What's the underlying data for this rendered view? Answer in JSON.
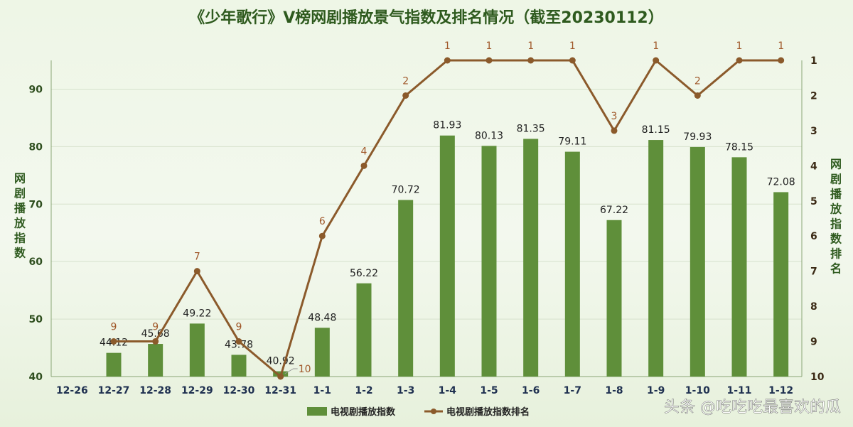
{
  "watermark": "头条 @吃吃吃最喜欢的瓜",
  "colors": {
    "bar": "#5f8f3a",
    "line": "#8b5a2b",
    "rank_label": "#a0582a",
    "grid": "#d6e2cc",
    "axis": "#8aa676"
  },
  "chart_data": {
    "type": "bar",
    "title": "《少年歌行》V榜网剧播放景气指数及排名情况（截至20230112）",
    "ylabel": "网剧播放指数",
    "y2label": "网剧播放指数排名",
    "ylim": [
      40,
      95
    ],
    "yticks": [
      40,
      50,
      60,
      70,
      80,
      90
    ],
    "y2lim": [
      1,
      10
    ],
    "y2ticks": [
      1,
      2,
      3,
      4,
      5,
      6,
      7,
      8,
      9,
      10
    ],
    "y2_reversed": true,
    "grid": true,
    "legend_position": "bottom",
    "categories": [
      "12-26",
      "12-27",
      "12-28",
      "12-29",
      "12-30",
      "12-31",
      "1-1",
      "1-2",
      "1-3",
      "1-4",
      "1-5",
      "1-6",
      "1-7",
      "1-8",
      "1-9",
      "1-10",
      "1-11",
      "1-12"
    ],
    "series": [
      {
        "name": "电视剧播放指数",
        "type": "bar",
        "axis": "left",
        "values": [
          null,
          44.12,
          45.68,
          49.22,
          43.78,
          40.92,
          48.48,
          56.22,
          70.72,
          81.93,
          80.13,
          81.35,
          79.11,
          67.22,
          81.15,
          79.93,
          78.15,
          72.08
        ],
        "labels": [
          "",
          "44.12",
          "45.68",
          "49.22",
          "43.78",
          "40.92",
          "48.48",
          "56.22",
          "70.72",
          "81.93",
          "80.13",
          "81.35",
          "79.11",
          "67.22",
          "81.15",
          "79.93",
          "78.15",
          "72.08"
        ]
      },
      {
        "name": "电视剧播放指数排名",
        "type": "line",
        "axis": "right",
        "values": [
          null,
          9,
          9,
          7,
          9,
          10,
          6,
          4,
          2,
          1,
          1,
          1,
          1,
          3,
          1,
          2,
          1,
          1
        ],
        "labels": [
          "",
          "9",
          "9",
          "7",
          "9",
          "10",
          "6",
          "4",
          "2",
          "1",
          "1",
          "1",
          "1",
          "3",
          "1",
          "2",
          "1",
          "1"
        ]
      }
    ]
  }
}
